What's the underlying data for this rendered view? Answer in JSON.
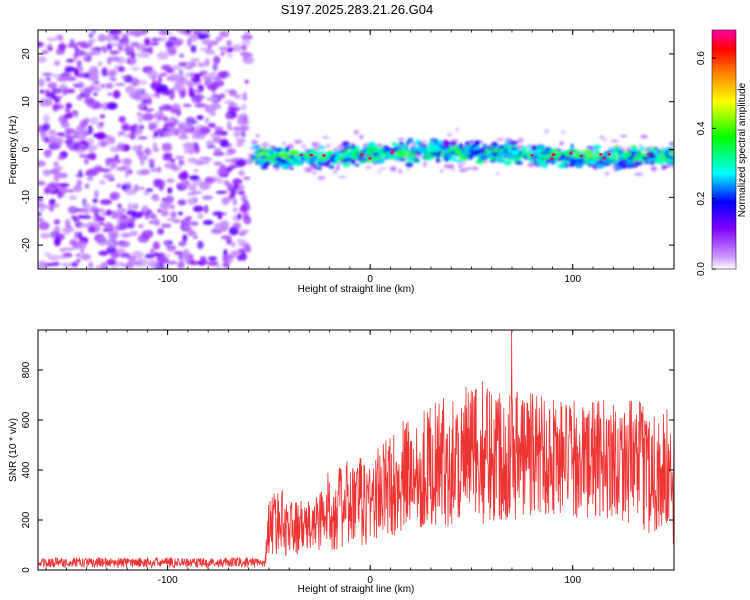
{
  "title": "S197.2025.283.21.26.G04",
  "colors": {
    "snr_line": "#ee3333",
    "axis": "#000000",
    "background": "#ffffff"
  },
  "chart_data": [
    {
      "type": "heatmap",
      "name": "spectrogram",
      "xlabel": "Height of straight line (km)",
      "ylabel": "Frequency (Hz)",
      "xlim": [
        -164,
        150
      ],
      "ylim": [
        -25,
        25
      ],
      "xticks": [
        -100,
        0,
        100
      ],
      "yticks": [
        -20,
        -10,
        0,
        10,
        20
      ],
      "xtick_labels": [
        "-100",
        "0",
        "100"
      ],
      "ytick_labels": [
        "-20",
        "-10",
        "0",
        "10",
        "20"
      ],
      "noise_region_x": [
        -164,
        -60
      ],
      "signal_start_x": -60,
      "signal_band_hz": [
        -3,
        3
      ],
      "colorbar": {
        "label": "Normalized spectral amplitude",
        "range": [
          0,
          0.68
        ],
        "ticks": [
          0,
          0.2,
          0.4,
          0.6
        ],
        "tick_labels": [
          "0.0",
          "0.2",
          "0.4",
          "0.6"
        ],
        "colormap": [
          "#ffffff",
          "#cc99ff",
          "#8000ff",
          "#0000ff",
          "#00ffff",
          "#00ff00",
          "#ffff00",
          "#ff8000",
          "#ff0000",
          "#ff00aa"
        ]
      }
    },
    {
      "type": "line",
      "name": "snr",
      "xlabel": "Height of straight line (km)",
      "ylabel": "SNR (10 * v/v)",
      "xlim": [
        -164,
        150
      ],
      "ylim": [
        0,
        960
      ],
      "xticks": [
        -100,
        0,
        100
      ],
      "yticks": [
        0,
        200,
        400,
        600,
        800
      ],
      "xtick_labels": [
        "-100",
        "0",
        "100"
      ],
      "ytick_labels": [
        "0",
        "200",
        "400",
        "600",
        "800"
      ],
      "envelope_x": [
        -164,
        -100,
        -52,
        -50,
        -45,
        -40,
        -30,
        -20,
        -10,
        0,
        10,
        20,
        30,
        40,
        50,
        60,
        70,
        80,
        90,
        100,
        110,
        120,
        130,
        140,
        150
      ],
      "envelope_mean": [
        30,
        30,
        30,
        180,
        200,
        170,
        170,
        240,
        260,
        280,
        340,
        390,
        420,
        440,
        460,
        480,
        470,
        470,
        460,
        440,
        440,
        450,
        430,
        400,
        360
      ],
      "envelope_spread": [
        20,
        20,
        20,
        120,
        150,
        120,
        110,
        170,
        190,
        200,
        220,
        250,
        260,
        280,
        300,
        310,
        290,
        280,
        260,
        250,
        250,
        260,
        260,
        280,
        300
      ],
      "peak_value": 955
    }
  ]
}
